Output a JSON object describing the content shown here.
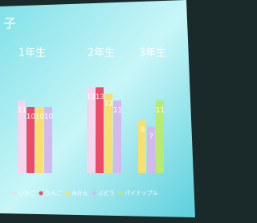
{
  "chart_data": {
    "type": "bar",
    "title": "子",
    "categories": [
      "1年生",
      "2年生",
      "3年生"
    ],
    "series": [
      {
        "name": "いちご",
        "color": "#f6d6ee",
        "values": [
          11,
          13,
          null
        ]
      },
      {
        "name": "りんご",
        "color": "#f04a68",
        "values": [
          10,
          13,
          null
        ]
      },
      {
        "name": "みかん",
        "color": "#f6e070",
        "values": [
          10,
          12,
          8
        ]
      },
      {
        "name": "ぶどう",
        "color": "#d4b8f0",
        "values": [
          10,
          11,
          7
        ]
      },
      {
        "name": "パイナップル",
        "color": "#b8ec70",
        "values": [
          null,
          null,
          11
        ]
      }
    ]
  }
}
